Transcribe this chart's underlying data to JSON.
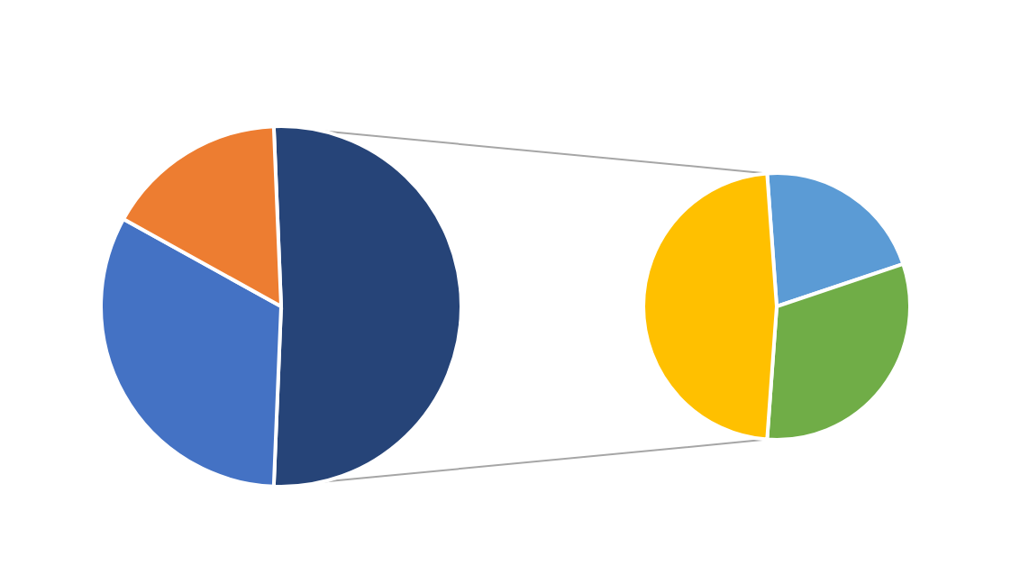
{
  "chart_data": [
    {
      "type": "pie",
      "categories": [
        null,
        null,
        null
      ],
      "values": [
        51.3,
        32.4,
        16.3
      ],
      "colors": [
        "#264478",
        "#4472c4",
        "#ed7d31"
      ]
    },
    {
      "type": "pie",
      "categories": [
        null,
        null,
        null
      ],
      "values": [
        21,
        31.3,
        47.7
      ],
      "colors": [
        "#5b9bd5",
        "#70ad47",
        "#ffc000"
      ]
    }
  ]
}
